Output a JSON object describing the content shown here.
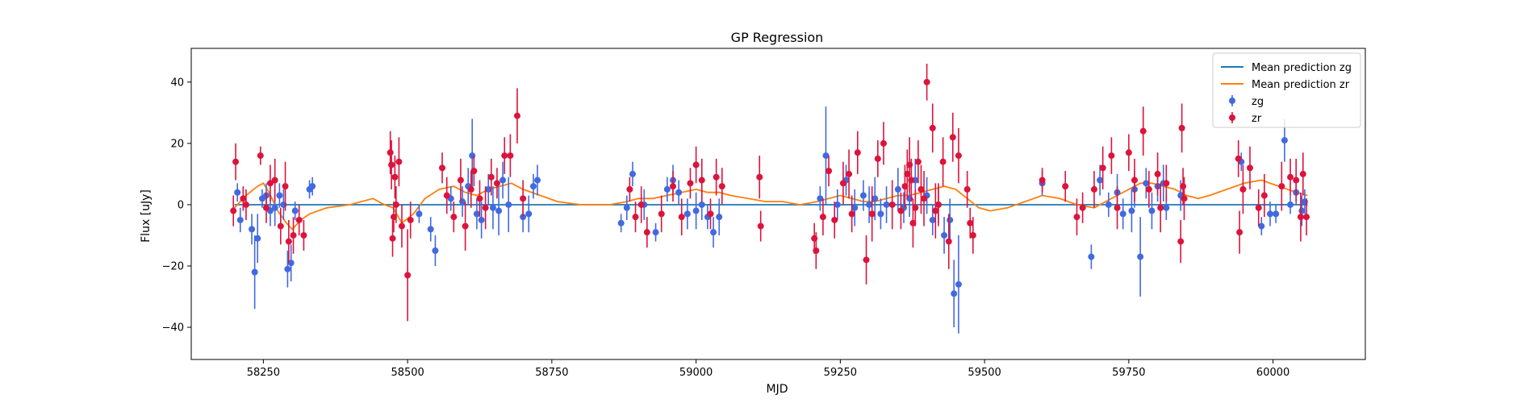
{
  "chart_data": {
    "type": "scatter",
    "title": "GP Regression",
    "xlabel": "MJD",
    "ylabel": "Flux [uJy]",
    "xlim": [
      58125,
      60160
    ],
    "ylim": [
      -50.5,
      51
    ],
    "xticks": [
      58250,
      58500,
      58750,
      59000,
      59250,
      59500,
      59750,
      60000
    ],
    "yticks": [
      -40,
      -20,
      0,
      20,
      40
    ],
    "legend_position": "upper right",
    "grid": false,
    "series": [
      {
        "name": "Mean prediction zg",
        "kind": "line",
        "color": "#1f77b4",
        "x": [
          58200,
          60060
        ],
        "y": [
          0,
          0
        ]
      },
      {
        "name": "Mean prediction zr",
        "kind": "line",
        "color": "#ff7f0e",
        "x": [
          58200,
          58220,
          58240,
          58250,
          58260,
          58275,
          58290,
          58300,
          58315,
          58330,
          58360,
          58400,
          58440,
          58460,
          58475,
          58490,
          58510,
          58530,
          58555,
          58580,
          58600,
          58620,
          58640,
          58660,
          58680,
          58700,
          58730,
          58760,
          58800,
          58850,
          58880,
          58900,
          58925,
          58950,
          58975,
          59000,
          59020,
          59040,
          59060,
          59090,
          59120,
          59150,
          59180,
          59210,
          59230,
          59250,
          59270,
          59290,
          59310,
          59330,
          59350,
          59370,
          59390,
          59410,
          59430,
          59450,
          59470,
          59490,
          59510,
          59540,
          59570,
          59600,
          59630,
          59660,
          59690,
          59710,
          59730,
          59750,
          59770,
          59790,
          59810,
          59830,
          59850,
          59870,
          59890,
          59920,
          59950,
          59980,
          60010,
          60040,
          60060
        ],
        "y": [
          -1,
          3,
          6,
          7,
          4,
          -2,
          -6,
          -8,
          -5,
          -3,
          -1,
          0,
          2,
          0,
          -1,
          -6,
          -3,
          2,
          5,
          6,
          4,
          3,
          5,
          6,
          7,
          5,
          3,
          1,
          0,
          0,
          1,
          2,
          2,
          3,
          4,
          5,
          4,
          4,
          3,
          2,
          1,
          1,
          0,
          1,
          2,
          3,
          2,
          1,
          1,
          2,
          3,
          3,
          4,
          5,
          6,
          5,
          2,
          -1,
          -2,
          -1,
          1,
          3,
          2,
          0,
          -1,
          1,
          3,
          5,
          7,
          7,
          6,
          5,
          3,
          2,
          3,
          5,
          7,
          8,
          6,
          4,
          3
        ]
      },
      {
        "name": "zg",
        "kind": "errorbar",
        "color": "#4169e1",
        "x": [
          58205,
          58210,
          58230,
          58235,
          58240,
          58248,
          58255,
          58262,
          58270,
          58278,
          58285,
          58292,
          58298,
          58305,
          58330,
          58335,
          58520,
          58540,
          58548,
          58575,
          58595,
          58605,
          58612,
          58620,
          58628,
          58640,
          58648,
          58658,
          58665,
          58675,
          58700,
          58710,
          58718,
          58725,
          58870,
          58880,
          58890,
          58910,
          58930,
          58950,
          58960,
          58970,
          58985,
          59000,
          59010,
          59020,
          59030,
          59040,
          59215,
          59225,
          59245,
          59260,
          59275,
          59290,
          59300,
          59310,
          59320,
          59330,
          59350,
          59360,
          59370,
          59380,
          59400,
          59410,
          59420,
          59430,
          59440,
          59447,
          59455,
          59600,
          59685,
          59700,
          59715,
          59730,
          59740,
          59755,
          59760,
          59770,
          59780,
          59790,
          59800,
          59810,
          59815,
          59840,
          59945,
          59980,
          59995,
          60005,
          60020,
          60030,
          60040,
          60050,
          60055
        ],
        "y": [
          4,
          -5,
          -8,
          -22,
          -11,
          2,
          3,
          -2,
          -1,
          3,
          0,
          -21,
          -19,
          -2,
          5,
          6,
          -3,
          -8,
          -15,
          2,
          1,
          6,
          16,
          -3,
          -5,
          5,
          -1,
          -2,
          8,
          0,
          -4,
          -3,
          6,
          8,
          -6,
          -1,
          10,
          0,
          -9,
          5,
          8,
          4,
          -3,
          -2,
          0,
          -4,
          -9,
          -4,
          2,
          16,
          0,
          8,
          -1,
          3,
          0,
          2,
          -3,
          0,
          5,
          -1,
          2,
          8,
          3,
          -5,
          0,
          -10,
          -5,
          -29,
          -26,
          7,
          -17,
          8,
          0,
          4,
          -3,
          -2,
          5,
          -17,
          7,
          -2,
          6,
          7,
          -1,
          3,
          14,
          -7,
          -3,
          -3,
          21,
          0,
          4,
          -2,
          1
        ],
        "err": [
          3,
          4,
          5,
          12,
          8,
          3,
          4,
          5,
          6,
          4,
          5,
          6,
          6,
          3,
          3,
          3,
          3,
          4,
          5,
          4,
          5,
          6,
          12,
          5,
          6,
          5,
          7,
          8,
          6,
          9,
          5,
          6,
          4,
          5,
          3,
          4,
          4,
          5,
          3,
          4,
          5,
          4,
          5,
          6,
          5,
          4,
          5,
          6,
          4,
          16,
          5,
          5,
          6,
          5,
          6,
          7,
          5,
          6,
          7,
          5,
          6,
          7,
          6,
          5,
          6,
          6,
          7,
          11,
          16,
          4,
          4,
          5,
          4,
          6,
          5,
          7,
          6,
          13,
          5,
          6,
          5,
          6,
          4,
          5,
          3,
          3,
          4,
          3,
          7,
          3,
          4,
          5,
          4
        ]
      },
      {
        "name": "zr",
        "kind": "errorbar",
        "color": "#dc143c",
        "x": [
          58198,
          58202,
          58215,
          58220,
          58245,
          58255,
          58262,
          58270,
          58280,
          58288,
          58294,
          58302,
          58312,
          58320,
          58470,
          58472,
          58474,
          58476,
          58478,
          58480,
          58485,
          58490,
          58500,
          58505,
          58560,
          58568,
          58580,
          58592,
          58600,
          58610,
          58615,
          58625,
          58635,
          58645,
          58655,
          58668,
          58678,
          58690,
          58700,
          58885,
          58895,
          58905,
          58915,
          58940,
          58960,
          58975,
          58990,
          59000,
          59010,
          59025,
          59035,
          59045,
          59110,
          59112,
          59205,
          59208,
          59220,
          59230,
          59240,
          59255,
          59265,
          59270,
          59280,
          59295,
          59305,
          59315,
          59325,
          59340,
          59355,
          59362,
          59366,
          59370,
          59373,
          59376,
          59380,
          59385,
          59390,
          59395,
          59400,
          59410,
          59415,
          59420,
          59428,
          59438,
          59445,
          59455,
          59470,
          59475,
          59480,
          59600,
          59640,
          59660,
          59670,
          59690,
          59705,
          59720,
          59730,
          59750,
          59760,
          59775,
          59785,
          59800,
          59805,
          59815,
          59840,
          59842,
          59844,
          59846,
          59940,
          59942,
          59948,
          59960,
          59975,
          59985,
          60015,
          60030,
          60040,
          60048,
          60052,
          60058
        ],
        "y": [
          -2,
          14,
          2,
          0,
          16,
          -1,
          7,
          8,
          -7,
          6,
          -12,
          -10,
          -5,
          -10,
          17,
          13,
          -11,
          -4,
          9,
          0,
          14,
          -7,
          -23,
          -5,
          12,
          3,
          -4,
          8,
          -7,
          5,
          11,
          2,
          -1,
          9,
          7,
          16,
          16,
          29,
          2,
          5,
          -4,
          0,
          -9,
          -3,
          6,
          -4,
          7,
          13,
          8,
          -3,
          9,
          6,
          9,
          -7,
          -11,
          -15,
          -4,
          11,
          -5,
          7,
          10,
          -3,
          17,
          -18,
          -3,
          15,
          20,
          0,
          -2,
          6,
          10,
          13,
          8,
          -6,
          -1,
          14,
          5,
          2,
          40,
          25,
          -2,
          0,
          14,
          -12,
          22,
          16,
          5,
          -6,
          -10,
          8,
          6,
          -4,
          -1,
          5,
          12,
          16,
          -1,
          17,
          8,
          24,
          5,
          10,
          -1,
          7,
          -12,
          25,
          6,
          2,
          15,
          -9,
          5,
          12,
          -1,
          3,
          6,
          9,
          8,
          -4,
          10,
          -4
        ],
        "err": [
          5,
          6,
          4,
          5,
          3,
          5,
          6,
          7,
          6,
          8,
          7,
          6,
          5,
          5,
          7,
          8,
          6,
          5,
          7,
          6,
          8,
          7,
          15,
          6,
          5,
          6,
          5,
          7,
          8,
          6,
          5,
          6,
          7,
          6,
          5,
          6,
          7,
          9,
          6,
          4,
          5,
          6,
          5,
          6,
          5,
          6,
          5,
          6,
          7,
          5,
          6,
          6,
          7,
          5,
          5,
          6,
          6,
          5,
          6,
          7,
          8,
          6,
          7,
          8,
          9,
          6,
          7,
          8,
          6,
          7,
          8,
          9,
          7,
          8,
          6,
          7,
          8,
          9,
          6,
          8,
          9,
          7,
          8,
          9,
          8,
          9,
          6,
          5,
          6,
          4,
          5,
          6,
          5,
          6,
          7,
          6,
          7,
          6,
          7,
          8,
          6,
          7,
          8,
          6,
          7,
          8,
          6,
          7,
          6,
          7,
          8,
          7,
          6,
          7,
          8,
          6,
          7,
          8,
          7,
          6
        ]
      }
    ]
  }
}
